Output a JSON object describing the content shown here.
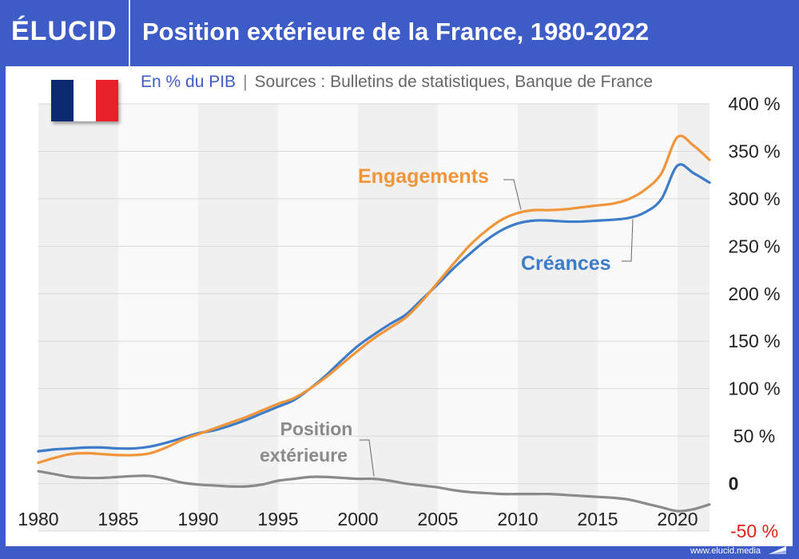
{
  "brand": {
    "logo_text": "ÉLUCID",
    "footer_url": "www.elucid.media"
  },
  "header": {
    "title": "Position extérieure de la France, 1980-2022"
  },
  "subtitle": {
    "unit": "En % du PIB",
    "separator": "|",
    "sources": "Sources : Bulletins de statistiques, Banque de France"
  },
  "flag": {
    "colors": [
      "#0b2a6f",
      "#ffffff",
      "#e8202a"
    ]
  },
  "colors": {
    "accent": "#3d5cc8",
    "engagements": "#f0953a",
    "creances": "#3d7cc9",
    "position": "#8a8a8a",
    "negative_label": "#e2231a"
  },
  "chart_data": {
    "type": "line",
    "x_ticks": [
      1980,
      1985,
      1990,
      1995,
      2000,
      2005,
      2010,
      2015,
      2020
    ],
    "y_ticks": [
      -50,
      0,
      50,
      100,
      150,
      200,
      250,
      300,
      350,
      400
    ],
    "y_tick_labels": [
      "-50 %",
      "0",
      "50 %",
      "100 %",
      "150 %",
      "200 %",
      "250 %",
      "300 %",
      "350 %",
      "400 %"
    ],
    "xlim": [
      1980,
      2022
    ],
    "ylim": [
      -50,
      400
    ],
    "grid": true,
    "series": [
      {
        "name": "Engagements",
        "color": "#f0953a",
        "x": [
          1980,
          1981,
          1982,
          1983,
          1984,
          1985,
          1986,
          1987,
          1988,
          1989,
          1990,
          1991,
          1992,
          1993,
          1994,
          1995,
          1996,
          1997,
          1998,
          1999,
          2000,
          2001,
          2002,
          2003,
          2004,
          2005,
          2006,
          2007,
          2008,
          2009,
          2010,
          2011,
          2012,
          2013,
          2014,
          2015,
          2016,
          2017,
          2018,
          2019,
          2020,
          2021,
          2022
        ],
        "y": [
          22,
          27,
          31,
          32,
          31,
          30,
          30,
          32,
          38,
          46,
          52,
          58,
          64,
          70,
          77,
          84,
          90,
          100,
          112,
          126,
          140,
          153,
          164,
          175,
          192,
          212,
          232,
          251,
          266,
          278,
          285,
          288,
          288,
          289,
          291,
          293,
          295,
          300,
          310,
          327,
          365,
          356,
          341
        ]
      },
      {
        "name": "Créances",
        "color": "#3d7cc9",
        "x": [
          1980,
          1981,
          1982,
          1983,
          1984,
          1985,
          1986,
          1987,
          1988,
          1989,
          1990,
          1991,
          1992,
          1993,
          1994,
          1995,
          1996,
          1997,
          1998,
          1999,
          2000,
          2001,
          2002,
          2003,
          2004,
          2005,
          2006,
          2007,
          2008,
          2009,
          2010,
          2011,
          2012,
          2013,
          2014,
          2015,
          2016,
          2017,
          2018,
          2019,
          2020,
          2021,
          2022
        ],
        "y": [
          34,
          36,
          37,
          38,
          38,
          37,
          37,
          39,
          43,
          48,
          53,
          56,
          61,
          67,
          74,
          81,
          88,
          100,
          114,
          130,
          145,
          157,
          168,
          178,
          194,
          210,
          227,
          242,
          256,
          267,
          274,
          277,
          277,
          276,
          276,
          277,
          278,
          280,
          286,
          300,
          335,
          327,
          317
        ]
      },
      {
        "name": "Position extérieure",
        "color": "#8a8a8a",
        "x": [
          1980,
          1981,
          1982,
          1983,
          1984,
          1985,
          1986,
          1987,
          1988,
          1989,
          1990,
          1991,
          1992,
          1993,
          1994,
          1995,
          1996,
          1997,
          1998,
          1999,
          2000,
          2001,
          2002,
          2003,
          2004,
          2005,
          2006,
          2007,
          2008,
          2009,
          2010,
          2011,
          2012,
          2013,
          2014,
          2015,
          2016,
          2017,
          2018,
          2019,
          2020,
          2021,
          2022
        ],
        "y": [
          13,
          10,
          7,
          6,
          6,
          7,
          8,
          8,
          5,
          1,
          -1,
          -2,
          -3,
          -3,
          -1,
          3,
          5,
          7,
          7,
          6,
          5,
          5,
          3,
          0,
          -2,
          -4,
          -7,
          -9,
          -10,
          -11,
          -11,
          -11,
          -11,
          -12,
          -13,
          -14,
          -15,
          -17,
          -21,
          -25,
          -29,
          -27,
          -22
        ]
      }
    ],
    "annotations": [
      {
        "text": "Engagements"
      },
      {
        "text": "Créances"
      },
      {
        "text_line1": "Position",
        "text_line2": "extérieure"
      }
    ]
  }
}
